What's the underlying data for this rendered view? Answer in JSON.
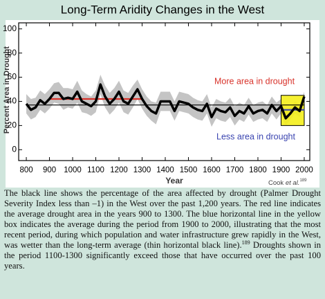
{
  "chart_data": {
    "type": "line",
    "title": "Long-Term Aridity Changes in the West",
    "xlabel": "Year",
    "ylabel": "Percent Area in Drought",
    "x": [
      800,
      820,
      840,
      860,
      880,
      900,
      920,
      940,
      960,
      980,
      1000,
      1020,
      1040,
      1060,
      1080,
      1100,
      1120,
      1140,
      1160,
      1180,
      1200,
      1220,
      1240,
      1260,
      1280,
      1300,
      1320,
      1340,
      1360,
      1380,
      1400,
      1420,
      1440,
      1460,
      1480,
      1500,
      1520,
      1540,
      1560,
      1580,
      1600,
      1620,
      1640,
      1660,
      1680,
      1700,
      1720,
      1740,
      1760,
      1780,
      1800,
      1820,
      1840,
      1860,
      1880,
      1900,
      1920,
      1940,
      1960,
      1980,
      2000
    ],
    "series": [
      {
        "color": "#000000",
        "values": [
          38,
          33,
          35,
          41,
          38,
          42,
          47,
          47,
          42,
          43,
          42,
          48,
          40,
          38,
          36,
          40,
          54,
          44,
          38,
          42,
          48,
          40,
          38,
          44,
          50,
          42,
          36,
          32,
          30,
          40,
          40,
          40,
          32,
          40,
          39,
          38,
          35,
          33,
          32,
          38,
          27,
          34,
          32,
          31,
          35,
          28,
          32,
          30,
          36,
          30,
          32,
          33,
          30,
          37,
          32,
          36,
          26,
          30,
          35,
          32,
          44
        ]
      }
    ],
    "band": {
      "color": "#c4c4c4",
      "upper": [
        46,
        42,
        43,
        49,
        46,
        50,
        55,
        56,
        51,
        51,
        50,
        57,
        49,
        46,
        44,
        49,
        62,
        53,
        47,
        51,
        57,
        49,
        47,
        53,
        58,
        50,
        44,
        40,
        39,
        48,
        48,
        48,
        40,
        48,
        47,
        46,
        43,
        41,
        40,
        46,
        35,
        42,
        40,
        39,
        43,
        36,
        39,
        37,
        43,
        37,
        39,
        40,
        37,
        44,
        39,
        42,
        32,
        35,
        40,
        37,
        48
      ],
      "lower": [
        30,
        25,
        27,
        33,
        30,
        34,
        39,
        38,
        33,
        35,
        34,
        39,
        31,
        30,
        28,
        31,
        46,
        35,
        29,
        33,
        39,
        31,
        29,
        35,
        42,
        34,
        28,
        24,
        21,
        32,
        32,
        32,
        24,
        32,
        31,
        30,
        27,
        25,
        24,
        30,
        19,
        26,
        24,
        23,
        27,
        20,
        25,
        23,
        29,
        23,
        25,
        26,
        23,
        30,
        25,
        30,
        20,
        25,
        30,
        27,
        40
      ]
    },
    "reference_lines": [
      {
        "xrange": [
          800,
          2000
        ],
        "value": 37,
        "color": "#000000"
      },
      {
        "xrange": [
          900,
          1300
        ],
        "value": 42,
        "color": "#d8322a"
      },
      {
        "xrange": [
          1900,
          2000
        ],
        "value": 33,
        "color": "#3a44b0"
      }
    ],
    "highlight_box": {
      "xrange": [
        1900,
        2000
      ],
      "yrange": [
        20,
        45
      ],
      "color": "#f4ee1c"
    },
    "annotations": [
      {
        "text": "More area in drought",
        "color": "#d8322a"
      },
      {
        "text": "Less area in drought",
        "color": "#3a44b0"
      }
    ],
    "xlim": [
      767,
      2024
    ],
    "ylim": [
      -9,
      105
    ],
    "xticks": [
      800,
      900,
      1000,
      1100,
      1200,
      1300,
      1400,
      1500,
      1600,
      1700,
      1800,
      1900,
      2000
    ],
    "yticks": [
      0,
      20,
      40,
      60,
      80,
      100
    ]
  },
  "credit": {
    "text": "Cook ",
    "italic": "et al.",
    "sup": "189"
  },
  "caption": [
    "The black line shows the percentage of the area affected by drought (Palmer Drought Severity Index less than –1) in the West over the past 1,200 years. The red line indicates the average drought area in the years 900 to 1300. The blue horizontal line in the yellow box indicates the average during the period from 1900 to 2000, illustrating that the most recent period, during which population and water infrastructure grew rapidly in the West, was wetter than the long-term average (thin horizontal black line).",
    "189",
    " Droughts shown in the period 1100-1300 significantly exceed those that have occurred over the past 100 years."
  ]
}
